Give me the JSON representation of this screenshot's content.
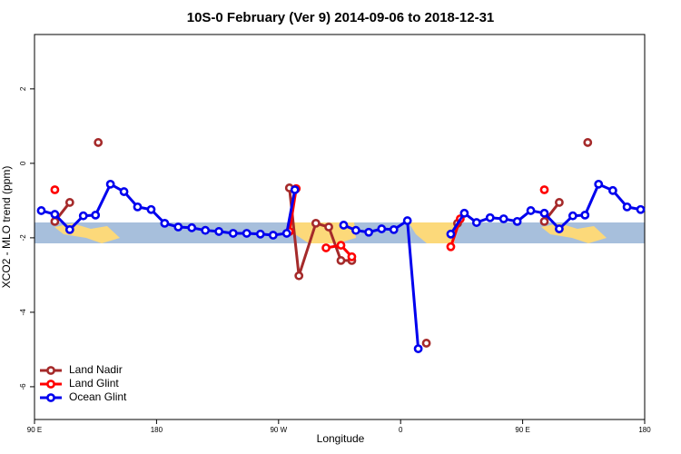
{
  "chart_data": {
    "type": "line",
    "title": "10S-0 February (Ver 9)   2014-09-06 to 2018-12-31",
    "xlabel": "Longitude",
    "ylabel": "XCO2 - MLO trend (ppm)",
    "xlim": [
      90,
      540
    ],
    "ylim": [
      -6.88,
      3.46
    ],
    "xticks": [
      {
        "value": 90,
        "label": "90 E"
      },
      180,
      {
        "value": 270,
        "label": "90 W"
      },
      {
        "value": 360,
        "label": "0"
      },
      {
        "value": 450,
        "label": "90 E"
      },
      {
        "value": 540,
        "label": "180"
      }
    ],
    "yticks": [
      2,
      0,
      -2,
      -4,
      -6
    ],
    "legend": "bottom-left",
    "series": [
      {
        "name": "Land Nadir",
        "color": "#a52a2a",
        "x": [
          105,
          116,
          null,
          137,
          null,
          278,
          285,
          297.5,
          307,
          316,
          324,
          null,
          379,
          null,
          402,
          null,
          466,
          477,
          null,
          498
        ],
        "values": [
          -1.56,
          -1.05,
          null,
          0.56,
          null,
          -0.66,
          -3.02,
          -1.61,
          -1.71,
          -2.61,
          -2.61,
          null,
          -4.83,
          null,
          -1.61,
          null,
          -1.56,
          -1.05,
          null,
          0.56
        ]
      },
      {
        "name": "Land Glint",
        "color": "#ff0000",
        "x": [
          105,
          null,
          283,
          278,
          null,
          305,
          316,
          324,
          null,
          397,
          404,
          null,
          466
        ],
        "values": [
          -0.71,
          null,
          -0.68,
          -1.83,
          null,
          -2.27,
          -2.2,
          -2.51,
          null,
          -2.24,
          -1.49,
          null,
          -0.71
        ]
      },
      {
        "name": "Ocean Glint",
        "color": "#0000ee",
        "x": [
          95,
          105,
          116,
          126,
          135,
          146,
          156,
          166,
          176,
          186,
          196,
          206,
          216,
          226,
          236.5,
          246.5,
          256.6,
          266,
          276,
          282,
          null,
          318,
          327,
          336.5,
          346,
          355,
          365,
          373,
          null,
          397,
          407,
          416,
          426,
          436,
          446,
          456,
          466,
          477,
          487,
          496,
          506,
          516.5,
          527,
          537
        ],
        "values": [
          -1.27,
          -1.37,
          -1.78,
          -1.41,
          -1.39,
          -0.56,
          -0.76,
          -1.17,
          -1.24,
          -1.61,
          -1.71,
          -1.73,
          -1.8,
          -1.83,
          -1.88,
          -1.88,
          -1.9,
          -1.93,
          -1.88,
          -0.71,
          null,
          -1.66,
          -1.8,
          -1.85,
          -1.76,
          -1.78,
          -1.54,
          -4.98,
          null,
          -1.9,
          -1.34,
          -1.59,
          -1.46,
          -1.49,
          -1.56,
          -1.27,
          -1.34,
          -1.76,
          -1.41,
          -1.39,
          -0.56,
          -0.73,
          -1.17,
          -1.24
        ]
      }
    ]
  }
}
